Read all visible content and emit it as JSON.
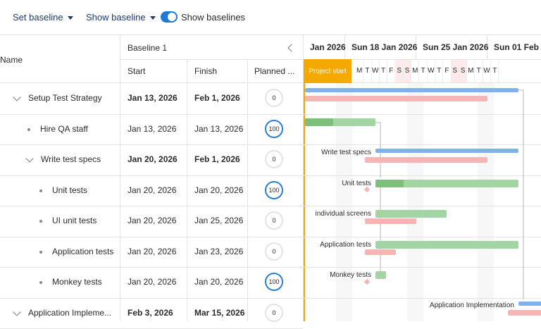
{
  "toolbar": {
    "set_baseline": "Set baseline",
    "show_baseline": "Show baseline",
    "show_baselines_label": "Show baselines",
    "toggle_on": true
  },
  "grid": {
    "name_header": "Name",
    "group_header": "Baseline 1",
    "start_header": "Start",
    "finish_header": "Finish",
    "planned_header": "Planned ...",
    "rows": [
      {
        "name": "Setup Test Strategy",
        "start": "Jan 13, 2026",
        "finish": "Feb 1, 2026",
        "planned": "0",
        "parent": true
      },
      {
        "name": "Hire QA staff",
        "start": "Jan 13, 2026",
        "finish": "Jan 13, 2026",
        "planned": "100",
        "parent": false
      },
      {
        "name": "Write test specs",
        "start": "Jan 20, 2026",
        "finish": "Feb 1, 2026",
        "planned": "0",
        "parent": true
      },
      {
        "name": "Unit tests",
        "start": "Jan 20, 2026",
        "finish": "Jan 20, 2026",
        "planned": "100",
        "parent": false
      },
      {
        "name": "UI unit tests",
        "start": "Jan 20, 2026",
        "finish": "Jan 25, 2026",
        "planned": "0",
        "parent": false
      },
      {
        "name": "Application tests",
        "start": "Jan 20, 2026",
        "finish": "Jan 23, 2026",
        "planned": "0",
        "parent": false
      },
      {
        "name": "Monkey tests",
        "start": "Jan 20, 2026",
        "finish": "Jan 20, 2026",
        "planned": "100",
        "parent": false
      },
      {
        "name": "Application Impleme...",
        "start": "Feb 3, 2026",
        "finish": "Mar 15, 2026",
        "planned": "0",
        "parent": true
      }
    ]
  },
  "timeline": {
    "weeks": [
      "Jan 2026",
      "Sun 18 Jan 2026",
      "Sun 25 Jan 2026",
      "Sun 01 Feb"
    ],
    "days": [
      "M",
      "T",
      "W",
      "T",
      "F",
      "S",
      "S",
      "M",
      "T",
      "W",
      "T",
      "F",
      "S",
      "S",
      "M",
      "T",
      "W",
      "T"
    ],
    "project_start": "Project start",
    "labels": [
      "Write test specs",
      "Unit tests",
      "individual screens",
      "Application tests",
      "Monkey tests",
      "Application Implementation"
    ]
  },
  "colors": {
    "accent": "#1e7ad6",
    "milestone": "#f5a800",
    "baseline": "#f5b5b5",
    "task": "#a3d4a3",
    "task_done": "#7cc07c",
    "summary": "#7fb2ea"
  }
}
